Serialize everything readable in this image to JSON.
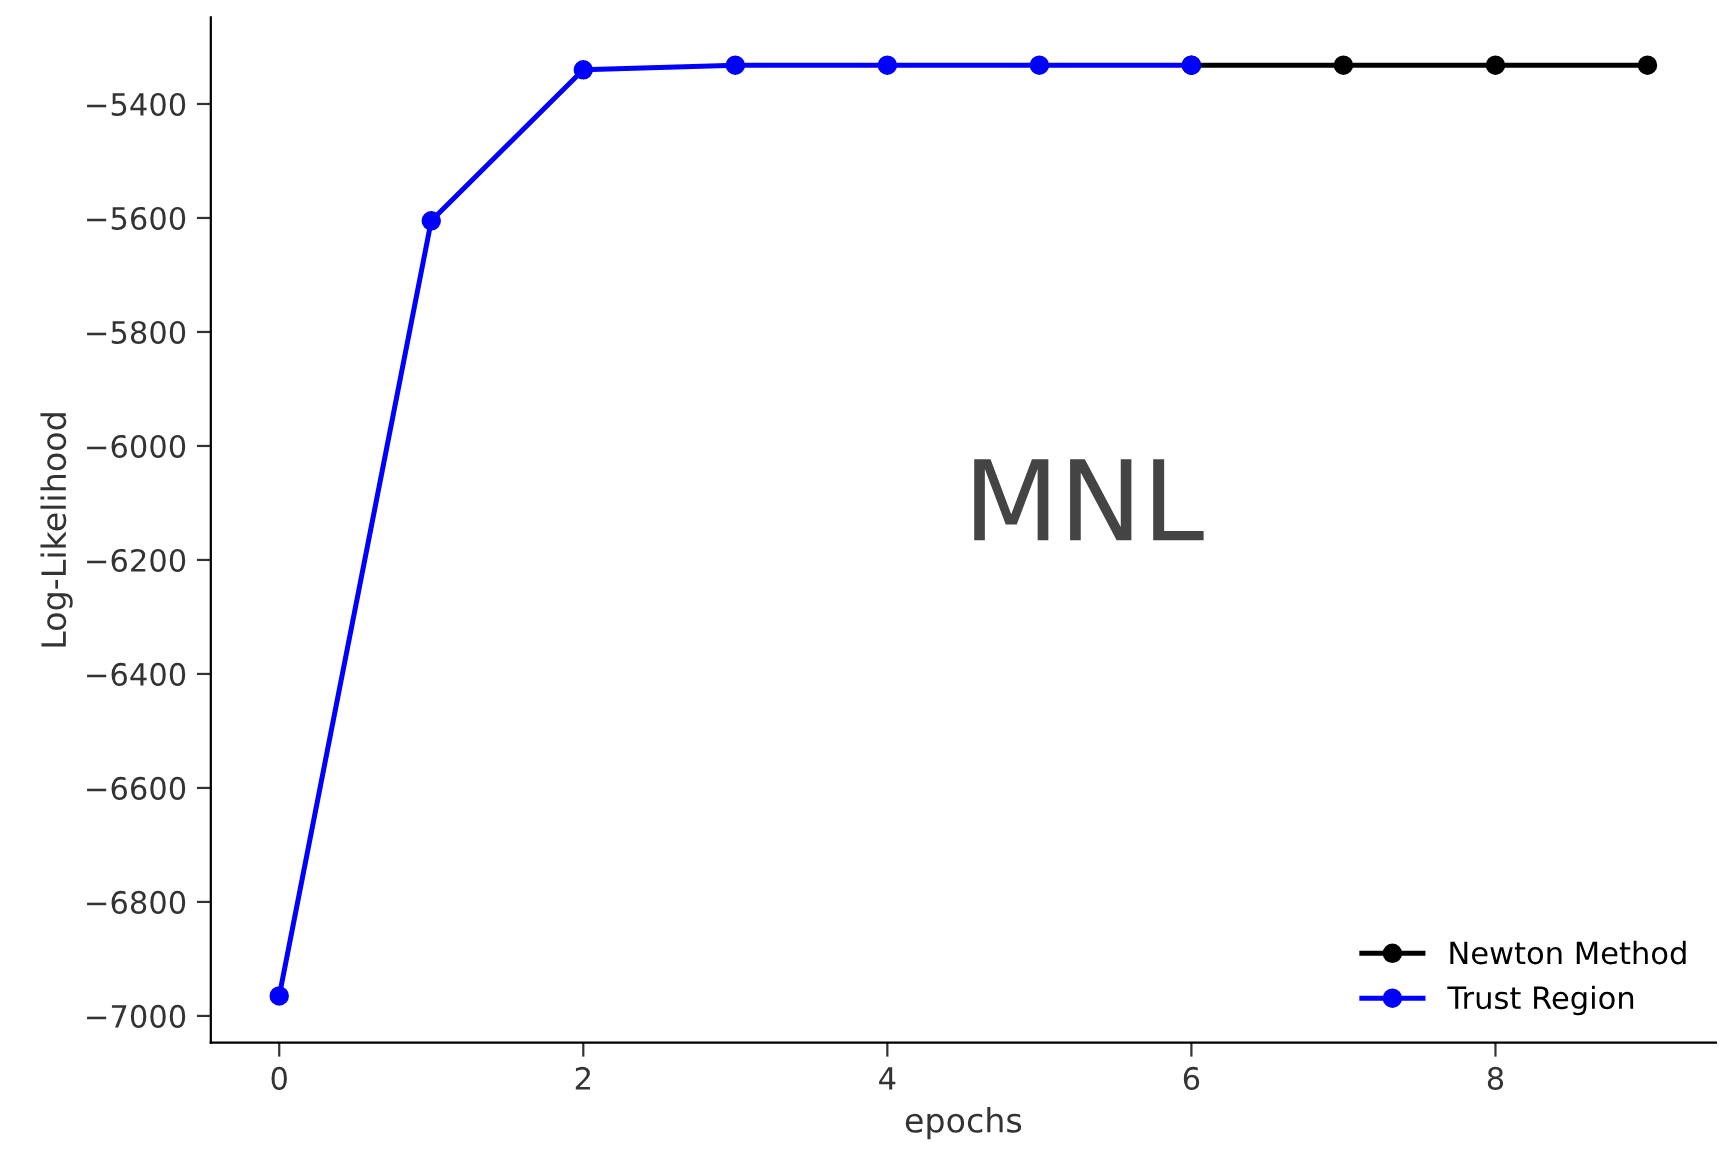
{
  "chart_data": {
    "type": "line",
    "xlabel": "epochs",
    "ylabel": "Log-Likelihood",
    "annotations": [
      "MNL"
    ],
    "x": [
      0,
      1,
      2,
      3,
      4,
      5,
      6,
      7,
      8,
      9
    ],
    "series": [
      {
        "name": "Newton Method",
        "color": "#000000",
        "values": [
          null,
          null,
          null,
          null,
          null,
          null,
          -5332,
          -5332,
          -5332,
          -5332
        ]
      },
      {
        "name": "Trust Region",
        "color": "#0000ff",
        "values": [
          -6965,
          -5605,
          -5340,
          -5332,
          -5332,
          -5332,
          -5332,
          null,
          null,
          null
        ]
      }
    ],
    "xlim": [
      -0.45,
      9.45
    ],
    "ylim": [
      -7047,
      -5248
    ],
    "xticks": [
      0,
      2,
      4,
      6,
      8
    ],
    "yticks": [
      -7000,
      -6800,
      -6600,
      -6400,
      -6200,
      -6000,
      -5800,
      -5600,
      -5400
    ],
    "marker": "circle",
    "line_style": "solid",
    "grid": false,
    "legend": "bottom right"
  }
}
